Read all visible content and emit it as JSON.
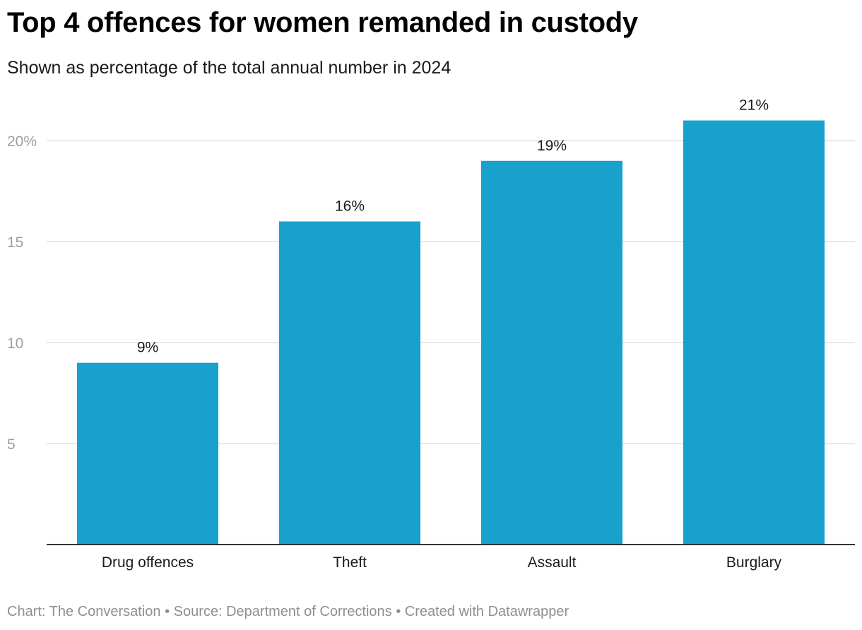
{
  "header": {
    "title": "Top 4 offences for women remanded in custody",
    "subtitle": "Shown as percentage of the total annual number in 2024"
  },
  "footer": {
    "text": "Chart: The Conversation • Source: Department of Corrections • Created with Datawrapper"
  },
  "colors": {
    "bar": "#18a1cd",
    "grid": "#e0e0e0",
    "axis": "#333333",
    "tick_label": "#9e9e9e",
    "text": "#1a1a1a"
  },
  "chart_data": {
    "type": "bar",
    "title": "Top 4 offences for women remanded in custody",
    "subtitle": "Shown as percentage of the total annual number in 2024",
    "categories": [
      "Drug offences",
      "Theft",
      "Assault",
      "Burglary"
    ],
    "values": [
      9,
      16,
      19,
      21
    ],
    "value_labels": [
      "9%",
      "16%",
      "19%",
      "21%"
    ],
    "ylim": [
      0,
      20.95
    ],
    "yticks": [
      5,
      10,
      15,
      20
    ],
    "ytick_labels": [
      "5",
      "10",
      "15",
      "20%"
    ],
    "grid": true,
    "legend": "none"
  }
}
